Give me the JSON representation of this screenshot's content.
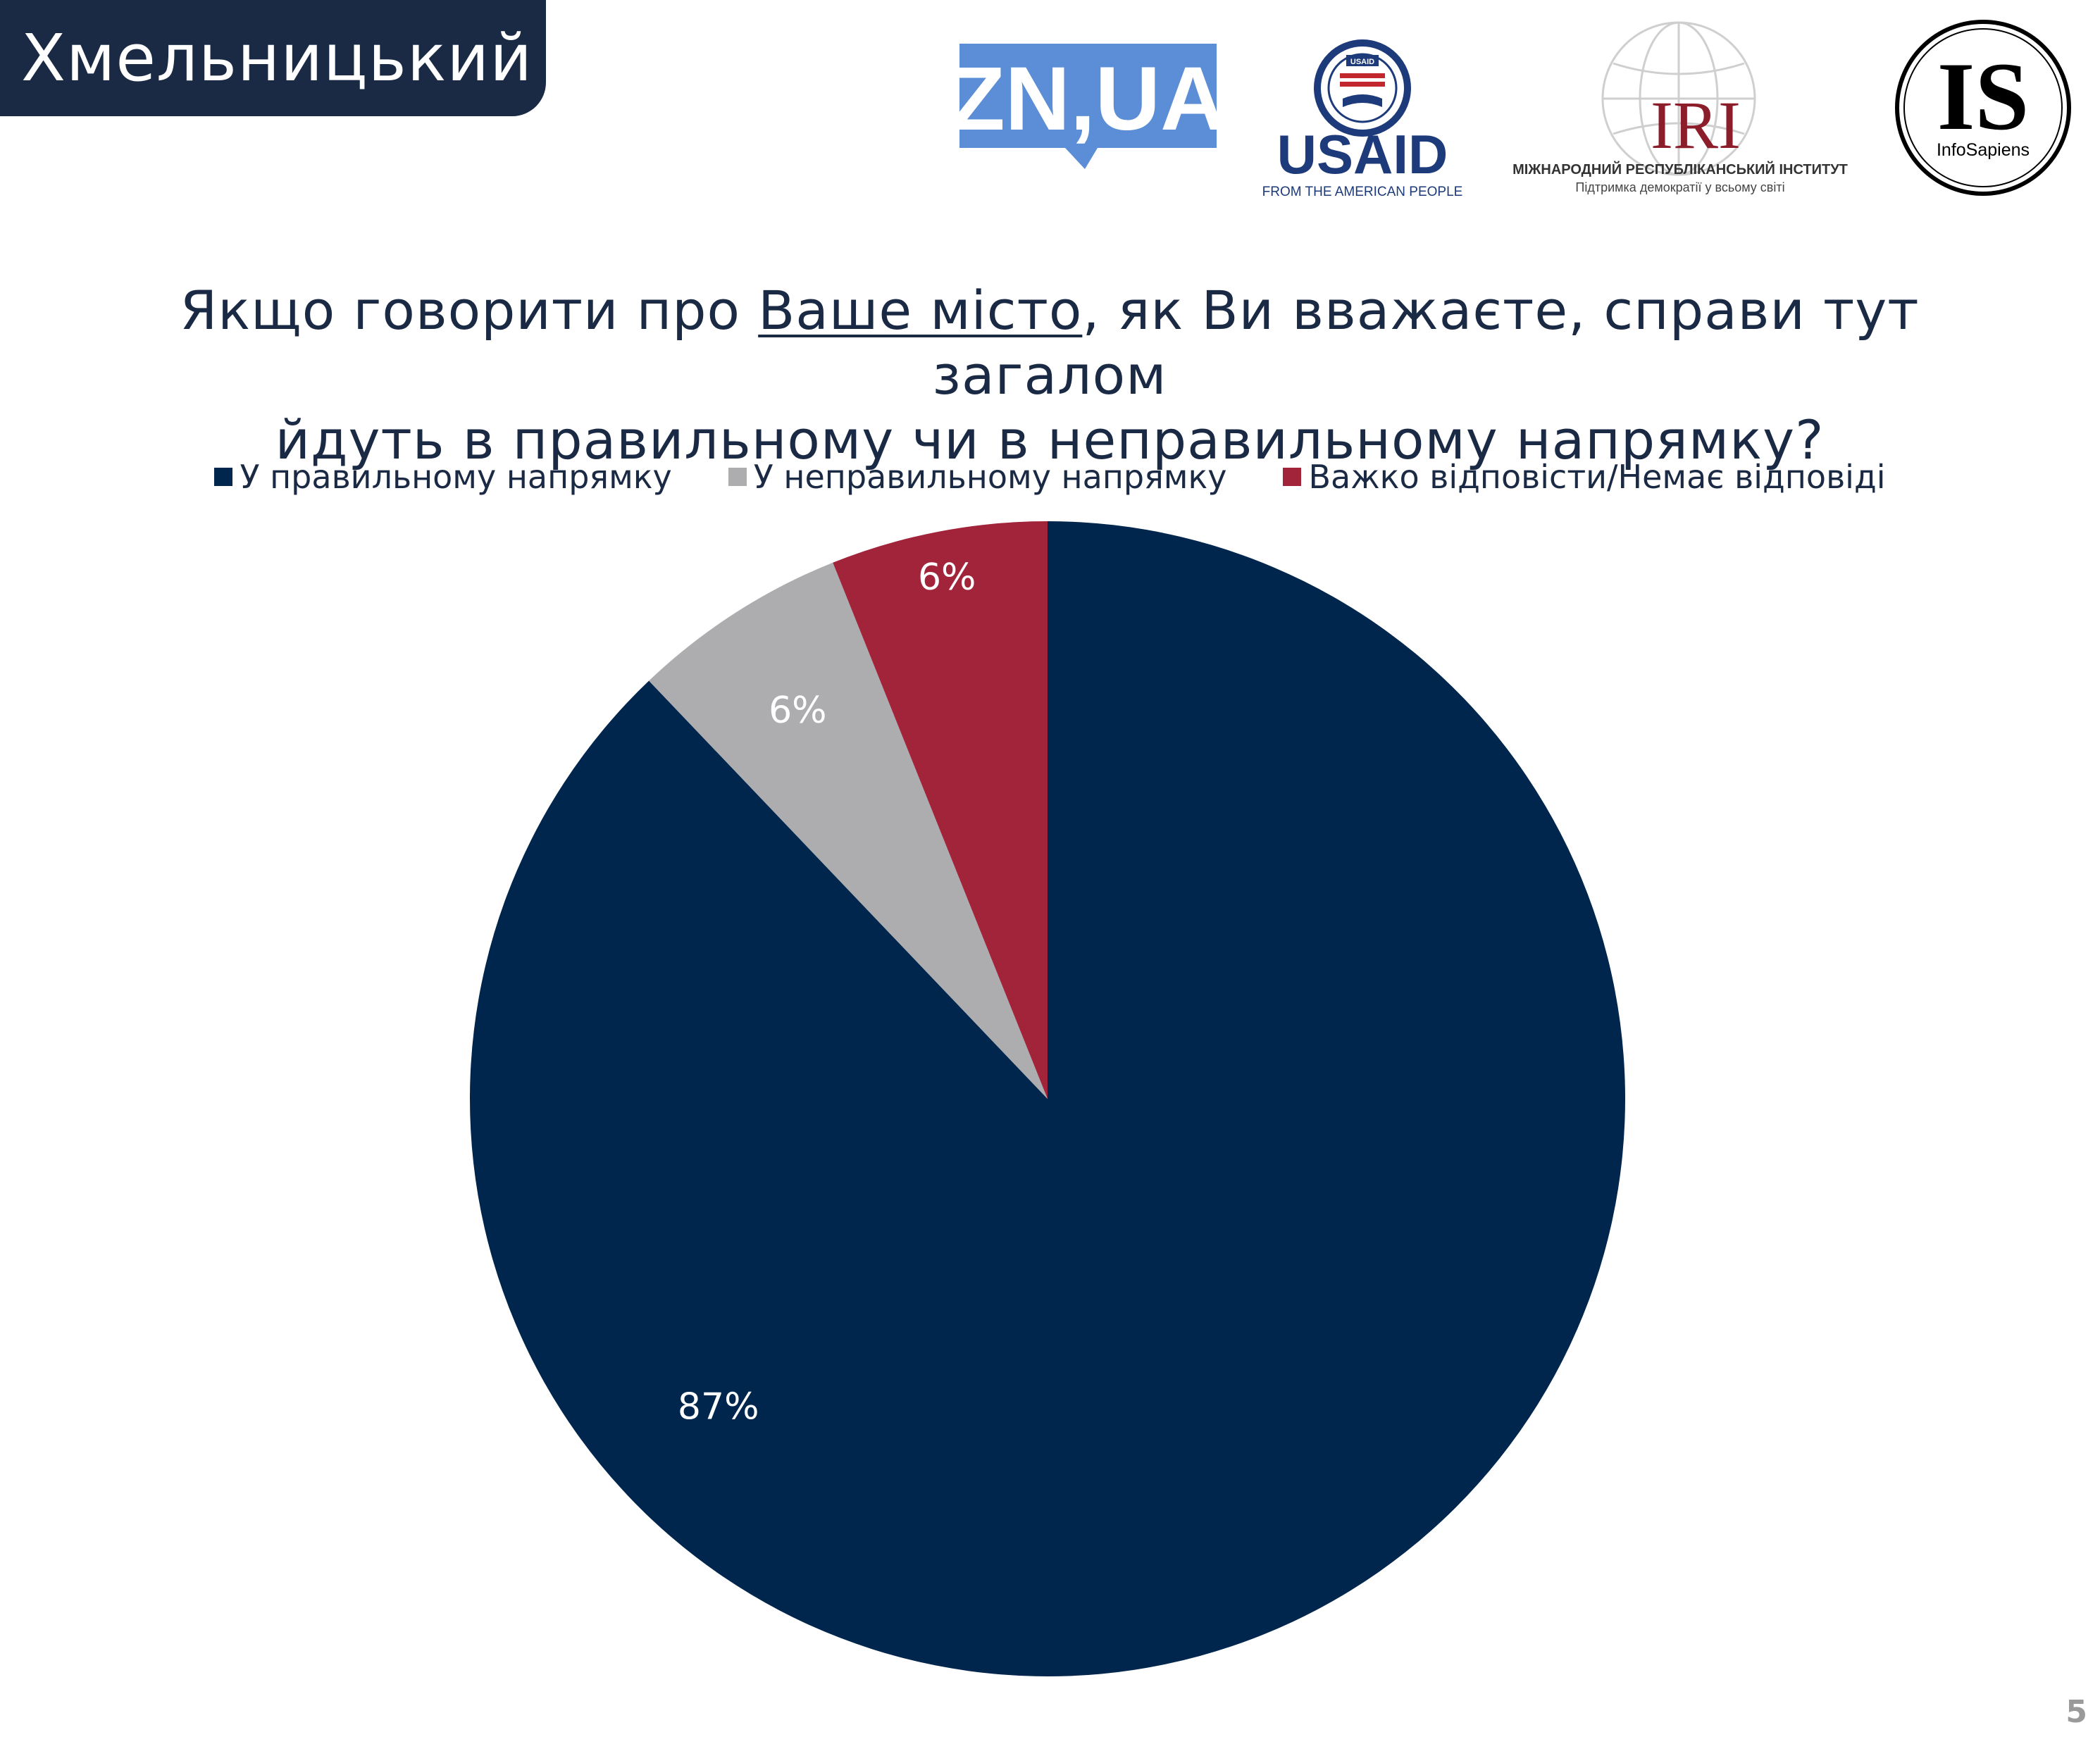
{
  "header": {
    "city": "Хмельницький"
  },
  "logos": {
    "znua": {
      "text": "ZN,UA",
      "color": "#5b8ed6"
    },
    "usaid": {
      "seal_text": "USAID",
      "wordmark": "USAID",
      "tagline": "FROM THE AMERICAN PEOPLE",
      "blue": "#1d3a7a",
      "red": "#c1272d"
    },
    "iri": {
      "wordmark": "IRI",
      "line1": "МІЖНАРОДНИЙ РЕСПУБЛІКАНСЬКИЙ ІНСТИТУТ",
      "line2": "Підтримка демократії у всьому світі",
      "red": "#8c1d2b"
    },
    "infosapiens": {
      "mark": "IS",
      "name": "InfoSapiens"
    }
  },
  "title": {
    "line1_before": "Якщо говорити про ",
    "line1_underlined": "Ваше місто",
    "line1_after": ", як Ви вважаєте, справи тут загалом",
    "line2": "йдуть в правильному чи в неправильному напрямку?"
  },
  "chart_data": {
    "type": "pie",
    "start_angle_deg": 0,
    "direction": "clockwise",
    "legend_position": "top",
    "slices": [
      {
        "label": "У правильному напрямку",
        "value": 87,
        "display": "87%",
        "color": "#00264d"
      },
      {
        "label": "У неправильному напрямку",
        "value": 6,
        "display": "6%",
        "color": "#adadaf"
      },
      {
        "label": "Важко відповісти/Немає відповіді",
        "value": 6,
        "display": "6%",
        "color": "#a1243a"
      }
    ]
  },
  "page": {
    "number": "5"
  }
}
